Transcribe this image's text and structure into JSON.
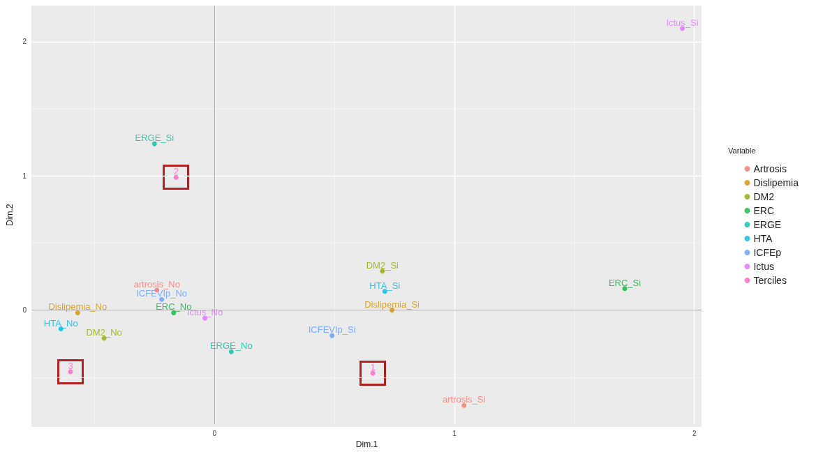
{
  "chart_data": {
    "type": "scatter",
    "xlabel": "Dim.1",
    "ylabel": "Dim.2",
    "legend_title": "Variable",
    "legend": "right",
    "grid": true,
    "marker": "circle",
    "xlim": [
      -0.76,
      2.03
    ],
    "ylim": [
      -0.85,
      2.27
    ],
    "xticks": [
      0,
      1,
      2
    ],
    "yticks": [
      0,
      1,
      2
    ],
    "ref_lines": [
      {
        "axis": "x",
        "value": 0,
        "color": "#b0b0b0"
      },
      {
        "axis": "y",
        "value": 0,
        "color": "#a0a0a0"
      }
    ],
    "series": [
      {
        "name": "Artrosis",
        "color": "#f8766d",
        "x": [
          -0.24,
          1.04
        ],
        "values": [
          0.15,
          -0.71
        ]
      },
      {
        "name": "Dislipemia",
        "color": "#d39200",
        "x": [
          -0.57,
          0.74
        ],
        "values": [
          -0.02,
          0.0
        ]
      },
      {
        "name": "DM2",
        "color": "#93aa00",
        "x": [
          -0.46,
          0.7
        ],
        "values": [
          -0.21,
          0.29
        ]
      },
      {
        "name": "ERC",
        "color": "#00ba38",
        "x": [
          -0.17,
          1.71
        ],
        "values": [
          -0.02,
          0.16
        ]
      },
      {
        "name": "ERGE",
        "color": "#00c19f",
        "x": [
          0.07,
          -0.25
        ],
        "values": [
          -0.31,
          1.24
        ]
      },
      {
        "name": "HTA",
        "color": "#00b9e3",
        "x": [
          -0.64,
          0.71
        ],
        "values": [
          -0.14,
          0.14
        ]
      },
      {
        "name": "ICFEp",
        "color": "#619cff",
        "x": [
          -0.22,
          0.49
        ],
        "values": [
          0.08,
          -0.19
        ]
      },
      {
        "name": "Ictus",
        "color": "#db72fb",
        "x": [
          -0.04,
          1.95
        ],
        "values": [
          -0.06,
          2.1
        ]
      },
      {
        "name": "Terciles",
        "color": "#ff61c3",
        "x": [
          0.66,
          -0.16,
          -0.6
        ],
        "values": [
          -0.47,
          0.99,
          -0.46
        ]
      }
    ],
    "annotations": [
      {
        "text": "artrosis_No",
        "x": -0.24,
        "y": 0.15
      },
      {
        "text": "artrosis_Si",
        "x": 1.04,
        "y": -0.71
      },
      {
        "text": "Dislipemia_No",
        "x": -0.57,
        "y": -0.02
      },
      {
        "text": "Dislipemia_Si",
        "x": 0.74,
        "y": 0.0
      },
      {
        "text": "DM2_No",
        "x": -0.46,
        "y": -0.21
      },
      {
        "text": "DM2_Si",
        "x": 0.7,
        "y": 0.29
      },
      {
        "text": "ERC_No",
        "x": -0.17,
        "y": -0.02
      },
      {
        "text": "ERC_Si",
        "x": 1.71,
        "y": 0.16
      },
      {
        "text": "ERGE_No",
        "x": 0.07,
        "y": -0.31
      },
      {
        "text": "ERGE_Si",
        "x": -0.25,
        "y": 1.24
      },
      {
        "text": "HTA_No",
        "x": -0.64,
        "y": -0.14
      },
      {
        "text": "HTA_Si",
        "x": 0.71,
        "y": 0.14
      },
      {
        "text": "ICFEVIp_No",
        "x": -0.22,
        "y": 0.08
      },
      {
        "text": "ICFEVIp_Si",
        "x": 0.49,
        "y": -0.19
      },
      {
        "text": "Ictus_No",
        "x": -0.04,
        "y": -0.06
      },
      {
        "text": "Ictus_Si",
        "x": 1.95,
        "y": 2.1
      },
      {
        "text": "1",
        "x": 0.66,
        "y": -0.47
      },
      {
        "text": "2",
        "x": -0.16,
        "y": 0.99
      },
      {
        "text": "3",
        "x": -0.6,
        "y": -0.46
      }
    ]
  }
}
